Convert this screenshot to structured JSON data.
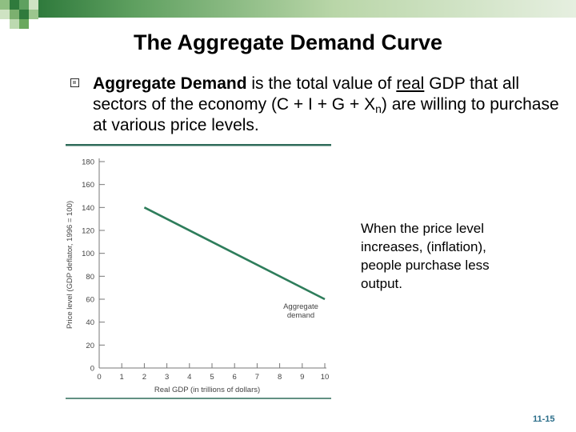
{
  "slide": {
    "title": "The Aggregate Demand Curve",
    "bullet": {
      "term": "Aggregate Demand",
      "text_1": " is the total value of ",
      "underlined": "real",
      "text_2": " GDP that all sectors of the economy (C + I + G + X",
      "subscript": "n",
      "text_3": ") are willing to purchase at various price levels."
    },
    "callout": "When the price level increases, (inflation), people purchase less output.",
    "slide_number": "11-15",
    "colors": {
      "accent_green": "#2f7a3c",
      "curve": "#2e7d5b",
      "axis": "#777777"
    }
  },
  "chart_data": {
    "type": "line",
    "xlabel": "Real GDP (in trillions of dollars)",
    "ylabel": "Price level (GDP deflator, 1996 = 100)",
    "xlim": [
      0,
      10
    ],
    "ylim": [
      0,
      180
    ],
    "x_ticks": [
      "0",
      "1",
      "2",
      "3",
      "4",
      "5",
      "6",
      "7",
      "8",
      "9",
      "10"
    ],
    "y_ticks": [
      "0",
      "20",
      "40",
      "60",
      "80",
      "100",
      "120",
      "140",
      "160",
      "180"
    ],
    "series": [
      {
        "name": "Aggregate demand",
        "x": [
          2,
          10
        ],
        "y": [
          140,
          60
        ]
      }
    ],
    "annotations": [
      "Aggregate",
      "demand"
    ]
  }
}
